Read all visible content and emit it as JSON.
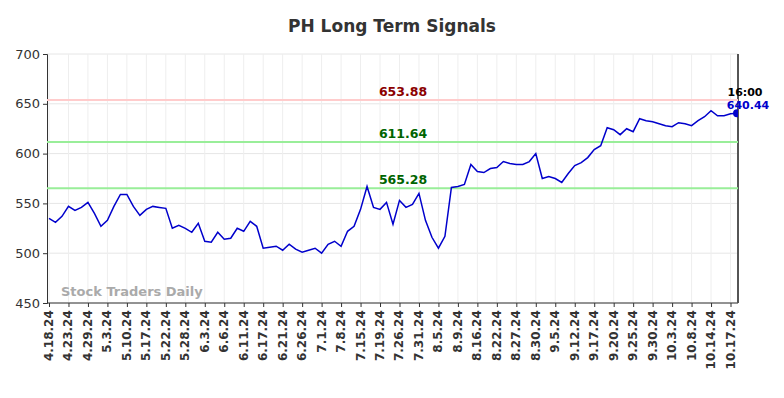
{
  "chart_data": {
    "type": "line",
    "title": "PH Long Term Signals",
    "categories": [
      "4.18.24",
      null,
      null,
      "4.23.24",
      null,
      null,
      "4.29.24",
      null,
      null,
      "5.3.24",
      null,
      null,
      "5.10.24",
      null,
      null,
      "5.17.24",
      null,
      null,
      "5.22.24",
      null,
      null,
      "5.28.24",
      null,
      null,
      "6.3.24",
      null,
      null,
      "6.6.24",
      null,
      null,
      "6.11.24",
      null,
      null,
      "6.17.24",
      null,
      null,
      "6.21.24",
      null,
      null,
      "6.26.24",
      null,
      null,
      "7.1.24",
      null,
      null,
      "7.8.24",
      null,
      null,
      "7.15.24",
      null,
      null,
      "7.19.24",
      null,
      null,
      "7.26.24",
      null,
      null,
      "7.31.24",
      null,
      null,
      "8.5.24",
      null,
      null,
      "8.9.24",
      null,
      null,
      "8.16.24",
      null,
      null,
      "8.22.24",
      null,
      null,
      "8.27.24",
      null,
      null,
      "8.30.24",
      null,
      null,
      "9.5.24",
      null,
      null,
      "9.12.24",
      null,
      null,
      "9.17.24",
      null,
      null,
      "9.20.24",
      null,
      null,
      "9.25.24",
      null,
      null,
      "9.30.24",
      null,
      null,
      "10.3.24",
      null,
      null,
      "10.8.24",
      null,
      null,
      "10.14.24",
      null,
      null,
      "10.17.24",
      null
    ],
    "series": [
      {
        "name": "PH",
        "color": "#0000cc",
        "values": [
          535,
          531,
          537,
          547,
          543,
          546,
          551,
          540,
          527,
          533,
          547,
          559,
          559,
          547,
          538,
          544,
          547,
          546,
          545,
          525,
          528,
          525,
          521,
          530,
          512,
          511,
          521,
          514,
          515,
          525,
          522,
          532,
          527,
          505,
          506,
          507,
          503,
          509,
          504,
          501,
          503,
          505,
          500,
          509,
          512,
          507,
          522,
          527,
          544,
          567,
          546,
          544,
          551,
          529,
          553,
          546,
          549,
          560,
          533,
          516,
          505,
          517,
          566,
          567,
          569,
          589,
          582,
          581,
          585,
          586,
          592,
          590,
          589,
          589,
          592,
          600,
          575,
          577,
          575,
          571,
          580,
          588,
          591,
          596,
          604,
          608,
          626,
          624,
          619,
          625,
          622,
          635,
          633,
          632,
          630,
          628,
          627,
          631,
          630,
          628,
          633,
          637,
          643,
          638,
          638,
          640,
          640.44
        ]
      }
    ],
    "ylim": [
      450,
      700
    ],
    "yticks": [
      450,
      500,
      550,
      600,
      650,
      700
    ],
    "grid": true,
    "reference_lines": [
      {
        "value": 653.88,
        "label": "653.88",
        "color": "#ffcccc",
        "text_color": "#8b0000"
      },
      {
        "value": 611.64,
        "label": "611.64",
        "color": "#99ee99",
        "text_color": "#006400"
      },
      {
        "value": 565.28,
        "label": "565.28",
        "color": "#99ee99",
        "text_color": "#006400"
      }
    ],
    "annotations": [
      {
        "text": "16:00"
      },
      {
        "text": "640.44",
        "color": "#0000cc"
      },
      {
        "text": "Stock Traders Daily"
      }
    ]
  }
}
